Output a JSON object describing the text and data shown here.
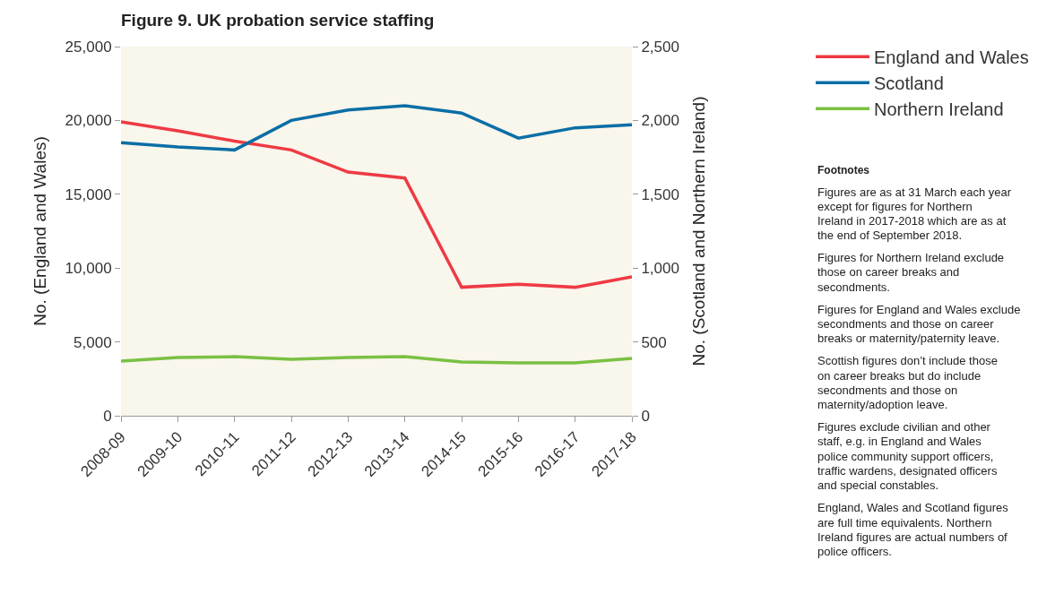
{
  "chart_data": {
    "type": "line",
    "title": "Figure 9. UK probation service staffing",
    "ylabel": "No. (England and Wales)",
    "y2label": "No. (Scotland and Northern Ireland)",
    "categories": [
      "2008-09",
      "2009-10",
      "2010-11",
      "2011-12",
      "2012-13",
      "2013-14",
      "2014-15",
      "2015-16",
      "2016-17",
      "2017-18"
    ],
    "series": [
      {
        "name": "England and Wales",
        "color": "#ee3a43",
        "values": [
          19900,
          19300,
          18600,
          18000,
          16500,
          16100,
          8700,
          8900,
          8700,
          9400
        ]
      },
      {
        "name": "Scotland",
        "color": "#0a6ea6",
        "axis": "y2",
        "values": [
          1850,
          1820,
          1800,
          2000,
          2070,
          2100,
          2050,
          1880,
          1950,
          1970
        ]
      },
      {
        "name": "Northern Ireland",
        "color": "#7ac143",
        "axis": "y2",
        "values": [
          370,
          395,
          400,
          382,
          395,
          400,
          364,
          358,
          358,
          388
        ]
      }
    ],
    "ylim": [
      0,
      25000
    ],
    "yticks": [
      {
        "value": 0,
        "label": "0"
      },
      {
        "value": 5000,
        "label": "5,000"
      },
      {
        "value": 10000,
        "label": "10,000"
      },
      {
        "value": 15000,
        "label": "15,000"
      },
      {
        "value": 20000,
        "label": "20,000"
      },
      {
        "value": 25000,
        "label": "25,000"
      }
    ],
    "y2lim": [
      0,
      2500
    ],
    "y2ticks": [
      {
        "value": 0,
        "label": "0"
      },
      {
        "value": 500,
        "label": "500"
      },
      {
        "value": 1000,
        "label": "1,000"
      },
      {
        "value": 1500,
        "label": "1,500"
      },
      {
        "value": 2000,
        "label": "2,000"
      },
      {
        "value": 2500,
        "label": "2,500"
      }
    ],
    "grid": false,
    "legend": "right",
    "marker": "none",
    "line_style": "solid",
    "annotations": [
      "Footnotes",
      "Figures are as at 31 March each year except for figures for Northern Ireland in 2017-2018 which are as at the end of September 2018.",
      "Figures for Northern Ireland exclude those on career breaks and secondments.",
      "Figures for England and Wales exclude secondments and those on career breaks or maternity/paternity leave.",
      "Scottish figures don’t include those on career breaks but do include secondments and those on maternity/adoption leave.",
      "Figures exclude civilian and other staff, e.g. in England and Wales police community support officers, traffic wardens, designated officers and special constables.",
      "England, Wales and Scotland figures are full time equivalents. Northern Ireland figures are actual numbers of police officers."
    ]
  }
}
